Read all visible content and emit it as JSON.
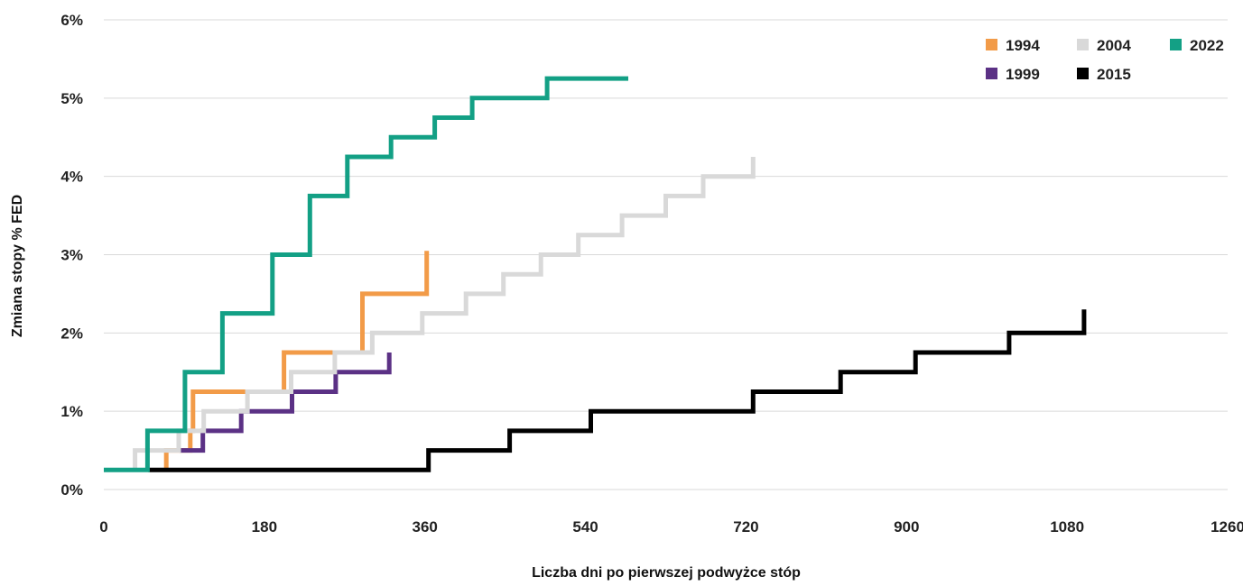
{
  "chart_data": {
    "type": "line",
    "title": "",
    "xlabel": "Liczba dni po pierwszej podwyżce stóp",
    "ylabel": "Zmiana stopy % FED",
    "xlim": [
      0,
      1260
    ],
    "ylim": [
      0,
      6
    ],
    "x_ticks": [
      0,
      180,
      360,
      540,
      720,
      900,
      1080,
      1260
    ],
    "x_tick_labels": [
      "0",
      "180",
      "360",
      "540",
      "720",
      "900",
      "1080",
      "1260"
    ],
    "y_ticks": [
      0,
      1,
      2,
      3,
      4,
      5,
      6
    ],
    "y_tick_labels": [
      "0%",
      "1%",
      "2%",
      "3%",
      "4%",
      "5%",
      "6%"
    ],
    "grid": "horizontal",
    "legend": "top-right",
    "step": true,
    "series": [
      {
        "name": "1994",
        "color": "#f29b48",
        "points": [
          [
            70,
            0.25
          ],
          [
            70,
            0.5
          ],
          [
            97,
            0.5
          ],
          [
            97,
            0.75
          ],
          [
            100,
            0.75
          ],
          [
            100,
            1.25
          ],
          [
            202,
            1.25
          ],
          [
            202,
            1.75
          ],
          [
            290,
            1.75
          ],
          [
            290,
            2.5
          ],
          [
            362,
            2.5
          ],
          [
            362,
            3.05
          ]
        ]
      },
      {
        "name": "1999",
        "color": "#5b3185",
        "points": [
          [
            85,
            0.5
          ],
          [
            111,
            0.5
          ],
          [
            111,
            0.75
          ],
          [
            154,
            0.75
          ],
          [
            154,
            1.0
          ],
          [
            211,
            1.0
          ],
          [
            211,
            1.25
          ],
          [
            260,
            1.25
          ],
          [
            260,
            1.5
          ],
          [
            320,
            1.5
          ],
          [
            320,
            1.75
          ]
        ]
      },
      {
        "name": "2004",
        "color": "#d9d9d9",
        "points": [
          [
            35,
            0.25
          ],
          [
            35,
            0.5
          ],
          [
            84,
            0.5
          ],
          [
            84,
            0.75
          ],
          [
            112,
            0.75
          ],
          [
            112,
            1.0
          ],
          [
            161,
            1.0
          ],
          [
            161,
            1.25
          ],
          [
            210,
            1.25
          ],
          [
            210,
            1.5
          ],
          [
            259,
            1.5
          ],
          [
            259,
            1.75
          ],
          [
            301,
            1.75
          ],
          [
            301,
            2.0
          ],
          [
            357,
            2.0
          ],
          [
            357,
            2.25
          ],
          [
            406,
            2.25
          ],
          [
            406,
            2.5
          ],
          [
            448,
            2.5
          ],
          [
            448,
            2.75
          ],
          [
            490,
            2.75
          ],
          [
            490,
            3.0
          ],
          [
            532,
            3.0
          ],
          [
            532,
            3.25
          ],
          [
            581,
            3.25
          ],
          [
            581,
            3.5
          ],
          [
            630,
            3.5
          ],
          [
            630,
            3.75
          ],
          [
            672,
            3.75
          ],
          [
            672,
            4.0
          ],
          [
            728,
            4.0
          ],
          [
            728,
            4.25
          ]
        ]
      },
      {
        "name": "2015",
        "color": "#000000",
        "points": [
          [
            50,
            0.25
          ],
          [
            364,
            0.25
          ],
          [
            364,
            0.5
          ],
          [
            455,
            0.5
          ],
          [
            455,
            0.75
          ],
          [
            546,
            0.75
          ],
          [
            546,
            1.0
          ],
          [
            728,
            1.0
          ],
          [
            728,
            1.25
          ],
          [
            826,
            1.25
          ],
          [
            826,
            1.5
          ],
          [
            910,
            1.5
          ],
          [
            910,
            1.75
          ],
          [
            1015,
            1.75
          ],
          [
            1015,
            2.0
          ],
          [
            1099,
            2.0
          ],
          [
            1099,
            2.3
          ]
        ]
      },
      {
        "name": "2022",
        "color": "#13a085",
        "points": [
          [
            0,
            0.25
          ],
          [
            49,
            0.25
          ],
          [
            49,
            0.75
          ],
          [
            91,
            0.75
          ],
          [
            91,
            1.5
          ],
          [
            133,
            1.5
          ],
          [
            133,
            2.25
          ],
          [
            189,
            2.25
          ],
          [
            189,
            3.0
          ],
          [
            231,
            3.0
          ],
          [
            231,
            3.75
          ],
          [
            273,
            3.75
          ],
          [
            273,
            4.25
          ],
          [
            322,
            4.25
          ],
          [
            322,
            4.5
          ],
          [
            371,
            4.5
          ],
          [
            371,
            4.75
          ],
          [
            413,
            4.75
          ],
          [
            413,
            5.0
          ],
          [
            497,
            5.0
          ],
          [
            497,
            5.25
          ],
          [
            588,
            5.25
          ]
        ]
      }
    ]
  }
}
